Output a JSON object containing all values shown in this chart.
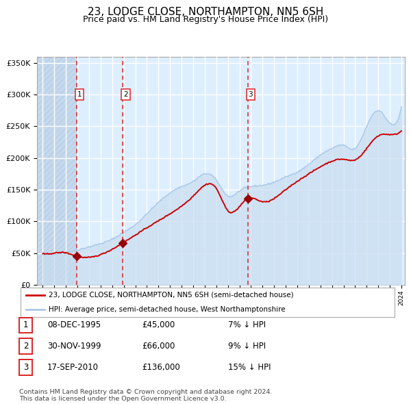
{
  "title": "23, LODGE CLOSE, NORTHAMPTON, NN5 6SH",
  "subtitle": "Price paid vs. HM Land Registry's House Price Index (HPI)",
  "title_fontsize": 11,
  "subtitle_fontsize": 9,
  "legend_line1": "23, LODGE CLOSE, NORTHAMPTON, NN5 6SH (semi-detached house)",
  "legend_line2": "HPI: Average price, semi-detached house, West Northamptonshire",
  "footer": "Contains HM Land Registry data © Crown copyright and database right 2024.\nThis data is licensed under the Open Government Licence v3.0.",
  "sale_labels": [
    {
      "num": 1,
      "date": "08-DEC-1995",
      "price": "£45,000",
      "note": "7% ↓ HPI"
    },
    {
      "num": 2,
      "date": "30-NOV-1999",
      "price": "£66,000",
      "note": "9% ↓ HPI"
    },
    {
      "num": 3,
      "date": "17-SEP-2010",
      "price": "£136,000",
      "note": "15% ↓ HPI"
    }
  ],
  "sale_dates_decimal": [
    1995.92,
    1999.92,
    2010.71
  ],
  "sale_prices": [
    45000,
    66000,
    136000
  ],
  "hpi_color": "#aac8e8",
  "hpi_fill_color": "#c8ddf0",
  "price_color": "#cc0000",
  "marker_color": "#990000",
  "dashed_line_color": "#dd2222",
  "plot_bg_color": "#ddeeff",
  "hatch_color": "#c5d8ee",
  "grid_color": "#ffffff",
  "border_color": "#aaaaaa",
  "ylim": [
    0,
    360000
  ],
  "yticks": [
    0,
    50000,
    100000,
    150000,
    200000,
    250000,
    300000,
    350000
  ],
  "year_start": 1993,
  "year_end": 2024,
  "hpi_years": [
    1993,
    1994,
    1995,
    1996,
    1997,
    1998,
    1999,
    2000,
    2001,
    2002,
    2003,
    2004,
    2005,
    2006,
    2007,
    2008,
    2009,
    2010,
    2011,
    2012,
    2013,
    2014,
    2015,
    2016,
    2017,
    2018,
    2019,
    2020,
    2021,
    2022,
    2023,
    2024
  ],
  "hpi_vals": [
    47000,
    49000,
    51000,
    55000,
    60000,
    65000,
    72000,
    83000,
    95000,
    112000,
    130000,
    145000,
    155000,
    163000,
    175000,
    165000,
    140000,
    148000,
    155000,
    157000,
    162000,
    170000,
    178000,
    190000,
    205000,
    215000,
    220000,
    215000,
    250000,
    275000,
    255000,
    280000
  ],
  "price_years": [
    1993,
    1994,
    1995,
    1995.92,
    1999.92,
    2002,
    2004,
    2006,
    2007,
    2008,
    2009,
    2010.71,
    2012,
    2014,
    2016,
    2018,
    2019,
    2020,
    2021,
    2022,
    2023,
    2024
  ],
  "price_vals": [
    49000,
    50000,
    50500,
    45000,
    66000,
    90000,
    112000,
    140000,
    157000,
    152000,
    117000,
    136000,
    131000,
    150000,
    175000,
    195000,
    198000,
    197000,
    215000,
    235000,
    237000,
    243000
  ]
}
